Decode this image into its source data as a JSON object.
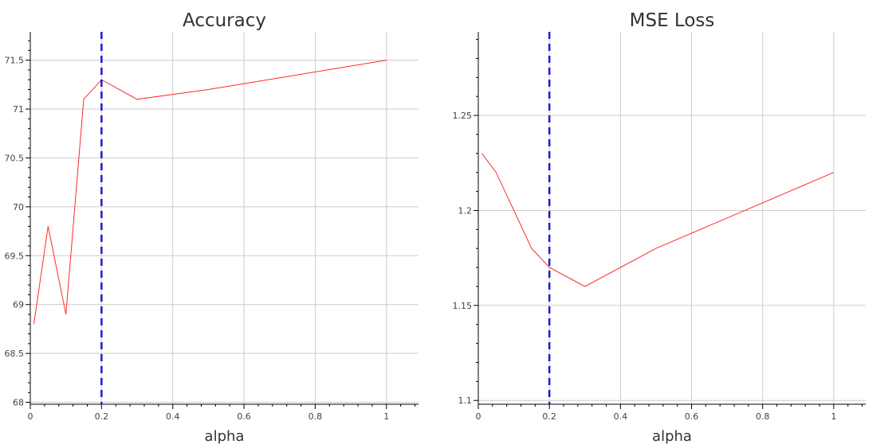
{
  "chart_data": [
    {
      "type": "line",
      "title": "Accuracy",
      "xlabel": "alpha",
      "ylabel": "",
      "xlim": [
        0,
        1.09
      ],
      "ylim": [
        67.98,
        71.79
      ],
      "x_ticks": [
        0,
        0.2,
        0.4,
        0.6,
        0.8,
        1
      ],
      "x_tick_labels": [
        "0",
        "0.2",
        "0.4",
        "0.6",
        "0.8",
        "1"
      ],
      "y_ticks": [
        68,
        68.5,
        69,
        69.5,
        70,
        70.5,
        71,
        71.5
      ],
      "y_tick_labels": [
        "68",
        "68.5",
        "69",
        "69.5",
        "70",
        "70.5",
        "71",
        "71.5"
      ],
      "grid": true,
      "series": [
        {
          "color": "#ff2a2a",
          "x": [
            0.01,
            0.05,
            0.1,
            0.15,
            0.2,
            0.3,
            0.5,
            1.0
          ],
          "y": [
            68.8,
            69.8,
            68.9,
            71.1,
            71.3,
            71.1,
            71.2,
            71.5
          ]
        }
      ],
      "vline": {
        "x": 0.2,
        "color": "#1a1add",
        "style": "dashed"
      }
    },
    {
      "type": "line",
      "title": "MSE Loss",
      "xlabel": "alpha",
      "ylabel": "",
      "xlim": [
        0,
        1.09
      ],
      "ylim": [
        1.098,
        1.294
      ],
      "x_ticks": [
        0,
        0.2,
        0.4,
        0.6,
        0.8,
        1
      ],
      "x_tick_labels": [
        "0",
        "0.2",
        "0.4",
        "0.6",
        "0.8",
        "1"
      ],
      "y_ticks": [
        1.1,
        1.15,
        1.2,
        1.25
      ],
      "y_tick_labels": [
        "1.1",
        "1.15",
        "1.2",
        "1.25"
      ],
      "grid": true,
      "series": [
        {
          "color": "#ff2a2a",
          "x": [
            0.01,
            0.05,
            0.1,
            0.15,
            0.2,
            0.3,
            0.5,
            1.0
          ],
          "y": [
            1.23,
            1.22,
            1.2,
            1.18,
            1.17,
            1.16,
            1.18,
            1.22
          ]
        }
      ],
      "vline": {
        "x": 0.2,
        "color": "#1a1add",
        "style": "dashed"
      }
    }
  ]
}
